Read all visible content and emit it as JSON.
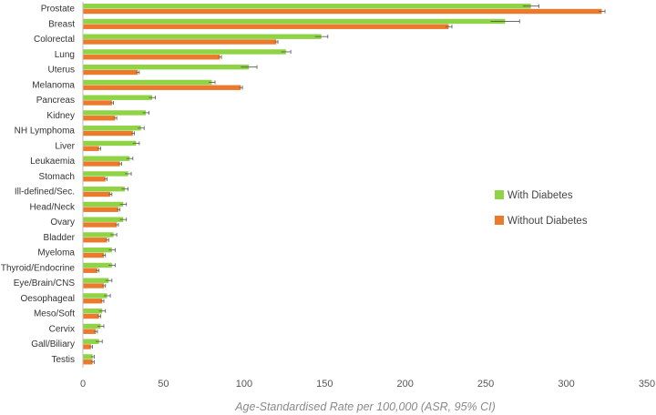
{
  "chart_data": {
    "type": "bar",
    "orientation": "horizontal",
    "categories": [
      "Prostate",
      "Breast",
      "Colorectal",
      "Lung",
      "Uterus",
      "Melanoma",
      "Pancreas",
      "Kidney",
      "NH Lymphoma",
      "Liver",
      "Leukaemia",
      "Stomach",
      "Ill-defined/Sec.",
      "Head/Neck",
      "Ovary",
      "Bladder",
      "Myeloma",
      "Thyroid/Endocrine",
      "Eye/Brain/CNS",
      "Oesophageal",
      "Meso/Soft",
      "Cervix",
      "Gall/Biliary",
      "Testis"
    ],
    "series": [
      {
        "name": "With Diabetes",
        "color": "#8ed444",
        "values": [
          278,
          262,
          148,
          126,
          103,
          80,
          43,
          39,
          36,
          33,
          29,
          28,
          26,
          25,
          25,
          19,
          18,
          18,
          16,
          15,
          12,
          11,
          10,
          6
        ],
        "err": [
          5,
          9,
          4,
          3,
          5,
          2,
          2,
          2,
          2,
          2,
          2,
          2,
          2,
          2,
          2,
          2,
          2,
          2,
          2,
          2,
          2,
          2,
          2,
          1
        ]
      },
      {
        "name": "Without Diabetes",
        "color": "#ec7a2c",
        "values": [
          322,
          227,
          120,
          85,
          34,
          98,
          18,
          20,
          31,
          10,
          23,
          14,
          17,
          22,
          21,
          15,
          13,
          9,
          13,
          12,
          10,
          8,
          5,
          6
        ],
        "err": [
          2,
          2,
          1,
          1,
          1,
          1,
          1,
          1,
          1,
          1,
          1,
          1,
          1,
          1,
          1,
          1,
          1,
          1,
          1,
          1,
          1,
          1,
          1,
          1
        ]
      }
    ],
    "xlabel": "Age-Standardised Rate per 100,000 (ASR, 95% CI)",
    "xlim": [
      0,
      350
    ],
    "xticks": [
      0,
      50,
      100,
      150,
      200,
      250,
      300,
      350
    ],
    "grid": false,
    "legend": {
      "placement": "right",
      "entries": [
        "With Diabetes",
        "Without Diabetes"
      ]
    }
  }
}
